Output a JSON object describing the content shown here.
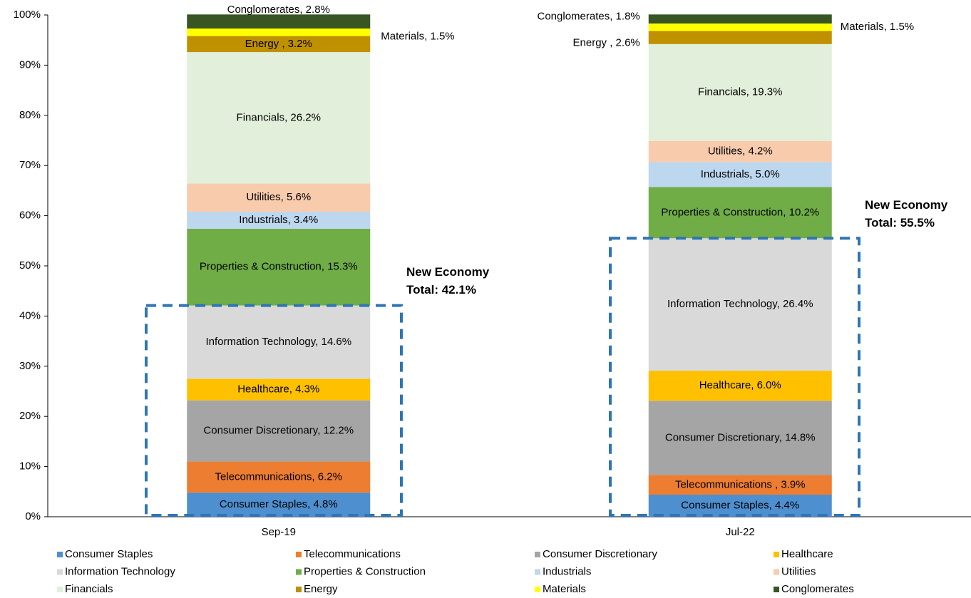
{
  "chart_data": {
    "type": "stacked_bar",
    "categories": [
      "Sep-19",
      "Jul-22"
    ],
    "ylim": [
      0,
      100
    ],
    "yticks": [
      {
        "value": 0,
        "label": "0%"
      },
      {
        "value": 10,
        "label": "10%"
      },
      {
        "value": 20,
        "label": "20%"
      },
      {
        "value": 30,
        "label": "30%"
      },
      {
        "value": 40,
        "label": "40%"
      },
      {
        "value": 50,
        "label": "50%"
      },
      {
        "value": 60,
        "label": "60%"
      },
      {
        "value": 70,
        "label": "70%"
      },
      {
        "value": 80,
        "label": "80%"
      },
      {
        "value": 90,
        "label": "90%"
      },
      {
        "value": 100,
        "label": "100%"
      }
    ],
    "grid": false,
    "legend": "bottom",
    "series": [
      {
        "name": "Consumer Staples",
        "color": "#4e8fd0",
        "values": [
          4.8,
          4.4
        ],
        "value_labels": [
          "Consumer Staples, 4.8%",
          "Consumer Staples, 4.4%"
        ]
      },
      {
        "name": "Telecommunications",
        "color": "#ed7d31",
        "values": [
          6.2,
          3.9
        ],
        "value_labels": [
          "Telecommunications, 6.2%",
          "Telecommunications , 3.9%"
        ]
      },
      {
        "name": "Consumer Discretionary",
        "color": "#a5a5a5",
        "values": [
          12.2,
          14.8
        ],
        "value_labels": [
          "Consumer Discretionary, 12.2%",
          "Consumer Discretionary, 14.8%"
        ]
      },
      {
        "name": "Healthcare",
        "color": "#ffc000",
        "values": [
          4.3,
          6.0
        ],
        "value_labels": [
          "Healthcare, 4.3%",
          "Healthcare, 6.0%"
        ]
      },
      {
        "name": "Information Technology",
        "color": "#d9d9d9",
        "values": [
          14.6,
          26.4
        ],
        "value_labels": [
          "Information Technology, 14.6%",
          "Information Technology, 26.4%"
        ]
      },
      {
        "name": "Properties & Construction",
        "color": "#70ad47",
        "values": [
          15.3,
          10.2
        ],
        "value_labels": [
          "Properties & Construction, 15.3%",
          "Properties & Construction, 10.2%"
        ]
      },
      {
        "name": "Industrials",
        "color": "#bdd7ee",
        "values": [
          3.4,
          5.0
        ],
        "value_labels": [
          "Industrials, 3.4%",
          "Industrials, 5.0%"
        ]
      },
      {
        "name": "Utilities",
        "color": "#f8cbad",
        "values": [
          5.6,
          4.2
        ],
        "value_labels": [
          "Utilities, 5.6%",
          "Utilities, 4.2%"
        ]
      },
      {
        "name": "Financials",
        "color": "#e2efda",
        "values": [
          26.2,
          19.3
        ],
        "value_labels": [
          "Financials, 26.2%",
          "Financials, 19.3%"
        ]
      },
      {
        "name": "Energy",
        "color": "#bf9000",
        "values": [
          3.2,
          2.6
        ],
        "value_labels": [
          "Energy , 3.2%",
          "Energy , 2.6%"
        ]
      },
      {
        "name": "Materials",
        "color": "#ffff00",
        "values": [
          1.5,
          1.5
        ],
        "value_labels": [
          "Materials, 1.5%",
          "Materials, 1.5%"
        ]
      },
      {
        "name": "Conglomerates",
        "color": "#375623",
        "values": [
          2.8,
          1.8
        ],
        "value_labels": [
          "Conglomerates, 2.8%",
          "Conglomerates, 1.8%"
        ]
      }
    ],
    "annotations": [
      {
        "lines": [
          "New Economy",
          "Total: 42.1%"
        ]
      },
      {
        "lines": [
          "New Economy",
          "Total: 55.5%"
        ]
      }
    ]
  }
}
